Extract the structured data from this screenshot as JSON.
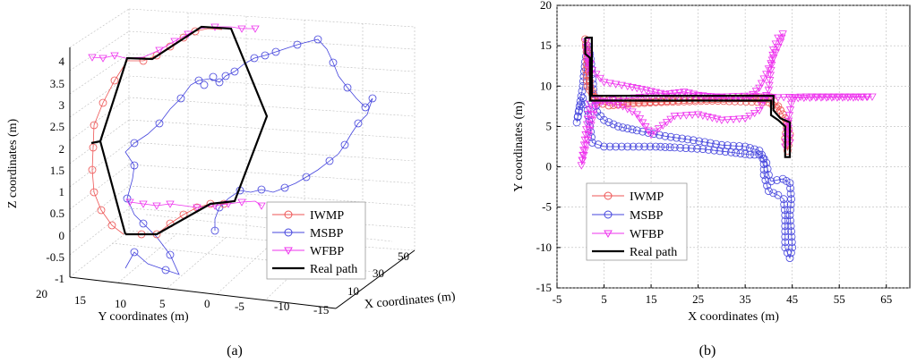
{
  "colors": {
    "iwmp": "#ee5555",
    "msbp": "#4444dd",
    "wfbp": "#ee33ee",
    "real": "#000000"
  },
  "legend": [
    {
      "key": "iwmp",
      "label": "IWMP",
      "marker": "circle"
    },
    {
      "key": "msbp",
      "label": "MSBP",
      "marker": "circle"
    },
    {
      "key": "wfbp",
      "label": "WFBP",
      "marker": "triangle-down"
    },
    {
      "key": "real",
      "label": "Real path",
      "marker": "line"
    }
  ],
  "chart_data": [
    {
      "type": "line3d",
      "caption": "(a)",
      "xlabel": "X coordinates (m)",
      "ylabel": "Y coordinates (m)",
      "zlabel": "Z coordinates (m)",
      "x_ticks": [
        "10",
        "30",
        "50"
      ],
      "y_ticks": [
        "20",
        "15",
        "10",
        "5",
        "0",
        "-5",
        "-10",
        "-15"
      ],
      "z_ticks": [
        "4",
        "3.5",
        "3",
        "2.5",
        "2",
        "1.5",
        "1",
        "0.5",
        "0",
        "-0.5",
        "-1"
      ],
      "grid": true,
      "legend_position": "bottom-right"
    },
    {
      "type": "line",
      "caption": "(b)",
      "xlabel": "X coordinates (m)",
      "ylabel": "Y coordinates (m)",
      "xlim": [
        -5,
        70
      ],
      "ylim": [
        -15,
        20
      ],
      "x_ticks": [
        -5,
        5,
        15,
        25,
        35,
        45,
        55,
        65
      ],
      "y_ticks": [
        20,
        15,
        10,
        5,
        0,
        -5,
        -10,
        -15
      ],
      "grid": true,
      "legend_position": "bottom-left",
      "series": [
        {
          "name": "Real path",
          "key": "real",
          "points": [
            [
              1,
              16
            ],
            [
              2.4,
              16
            ],
            [
              2.4,
              13
            ],
            [
              2.4,
              8.8
            ],
            [
              41,
              8.8
            ],
            [
              41,
              7
            ],
            [
              42.5,
              6
            ],
            [
              44.5,
              5.5
            ],
            [
              44.5,
              1.2
            ],
            [
              43.5,
              1.2
            ],
            [
              43.5,
              5
            ],
            [
              42,
              5.8
            ],
            [
              40.5,
              6.4
            ],
            [
              40.5,
              8.2
            ],
            [
              2,
              8.2
            ],
            [
              2,
              13.5
            ],
            [
              1,
              14
            ],
            [
              1,
              16
            ]
          ]
        },
        {
          "name": "IWMP",
          "key": "iwmp",
          "points": [
            [
              1,
              15.8
            ],
            [
              1.5,
              14
            ],
            [
              1.2,
              12
            ],
            [
              1.5,
              10
            ],
            [
              3,
              8.5
            ],
            [
              6,
              8.3
            ],
            [
              10,
              8
            ],
            [
              16,
              8.1
            ],
            [
              22,
              8.3
            ],
            [
              28,
              8.4
            ],
            [
              34,
              8.5
            ],
            [
              38,
              8.6
            ],
            [
              40.5,
              8.6
            ],
            [
              42,
              7.5
            ],
            [
              43.5,
              6
            ],
            [
              44.5,
              4
            ],
            [
              44,
              2
            ],
            [
              43.5,
              3.5
            ],
            [
              44,
              5.5
            ],
            [
              42.5,
              7
            ],
            [
              40,
              8
            ],
            [
              34,
              8.1
            ],
            [
              28,
              8.2
            ],
            [
              22,
              8.1
            ],
            [
              16,
              8
            ],
            [
              10,
              7.8
            ],
            [
              6,
              7.6
            ],
            [
              3.5,
              8
            ],
            [
              2,
              10
            ],
            [
              1.6,
              13
            ],
            [
              1,
              15.5
            ]
          ]
        },
        {
          "name": "MSBP",
          "key": "msbp",
          "points": [
            [
              1.5,
              15
            ],
            [
              1,
              13
            ],
            [
              0.5,
              10
            ],
            [
              -0.2,
              7.5
            ],
            [
              -0.8,
              5.5
            ],
            [
              -0.3,
              7
            ],
            [
              0.5,
              8.5
            ],
            [
              1.5,
              7
            ],
            [
              2,
              5
            ],
            [
              2.5,
              3
            ],
            [
              5,
              2.5
            ],
            [
              10,
              2.5
            ],
            [
              16,
              2.5
            ],
            [
              20,
              2.4
            ],
            [
              26,
              2.2
            ],
            [
              32,
              1.8
            ],
            [
              36,
              1.5
            ],
            [
              38,
              1.5
            ],
            [
              39.5,
              0.5
            ],
            [
              40,
              -1
            ],
            [
              40.5,
              -1.8
            ],
            [
              43,
              -1.5
            ],
            [
              44.5,
              -2
            ],
            [
              44.8,
              -4
            ],
            [
              44.5,
              -6
            ],
            [
              44.8,
              -8
            ],
            [
              45,
              -10
            ],
            [
              44.5,
              -11.3
            ],
            [
              43.5,
              -10
            ],
            [
              43.5,
              -8
            ],
            [
              43.5,
              -6
            ],
            [
              43.2,
              -4
            ],
            [
              42,
              -3.5
            ],
            [
              40,
              -3
            ],
            [
              39,
              -1
            ],
            [
              39,
              1
            ],
            [
              38,
              2
            ],
            [
              35,
              2.5
            ],
            [
              30,
              2.7
            ],
            [
              24,
              3.3
            ],
            [
              18,
              3.8
            ],
            [
              12,
              4.5
            ],
            [
              8,
              5
            ],
            [
              5,
              5.8
            ],
            [
              3.5,
              6.8
            ],
            [
              2.8,
              9
            ],
            [
              2.5,
              11.5
            ],
            [
              2,
              14
            ],
            [
              1.5,
              15
            ]
          ]
        },
        {
          "name": "WFBP",
          "key": "wfbp",
          "points": [
            [
              1.2,
              15.5
            ],
            [
              1.5,
              13
            ],
            [
              2,
              11.5
            ],
            [
              1.8,
              13.5
            ],
            [
              2.5,
              12
            ],
            [
              5,
              10.5
            ],
            [
              10,
              10
            ],
            [
              14,
              9.5
            ],
            [
              18,
              9
            ],
            [
              22,
              9.3
            ],
            [
              25,
              8.9
            ],
            [
              28,
              8.7
            ],
            [
              32,
              8.5
            ],
            [
              36,
              8.6
            ],
            [
              38,
              9.8
            ],
            [
              39.5,
              11.5
            ],
            [
              41,
              13.5
            ],
            [
              42.5,
              15.5
            ],
            [
              43,
              16.5
            ],
            [
              42,
              16
            ],
            [
              41,
              14.5
            ],
            [
              40,
              9.5
            ],
            [
              38,
              7
            ],
            [
              35,
              6
            ],
            [
              30,
              5.8
            ],
            [
              25,
              6.5
            ],
            [
              20,
              6.3
            ],
            [
              15,
              4
            ],
            [
              12,
              6.5
            ],
            [
              9,
              7.5
            ],
            [
              6,
              8
            ],
            [
              3.5,
              8.3
            ],
            [
              0.2,
              0.2
            ],
            [
              2,
              7.8
            ],
            [
              8,
              8.4
            ],
            [
              16,
              8.8
            ],
            [
              24,
              8.8
            ],
            [
              30,
              8.7
            ],
            [
              36,
              8.8
            ],
            [
              42,
              8.6
            ],
            [
              48,
              8.7
            ],
            [
              55,
              8.7
            ],
            [
              62,
              8.7
            ],
            [
              58,
              8.6
            ],
            [
              50,
              8.6
            ],
            [
              45,
              8.5
            ],
            [
              44,
              5
            ],
            [
              43.5,
              2.5
            ],
            [
              44.5,
              3
            ],
            [
              44,
              6
            ]
          ]
        }
      ]
    }
  ]
}
